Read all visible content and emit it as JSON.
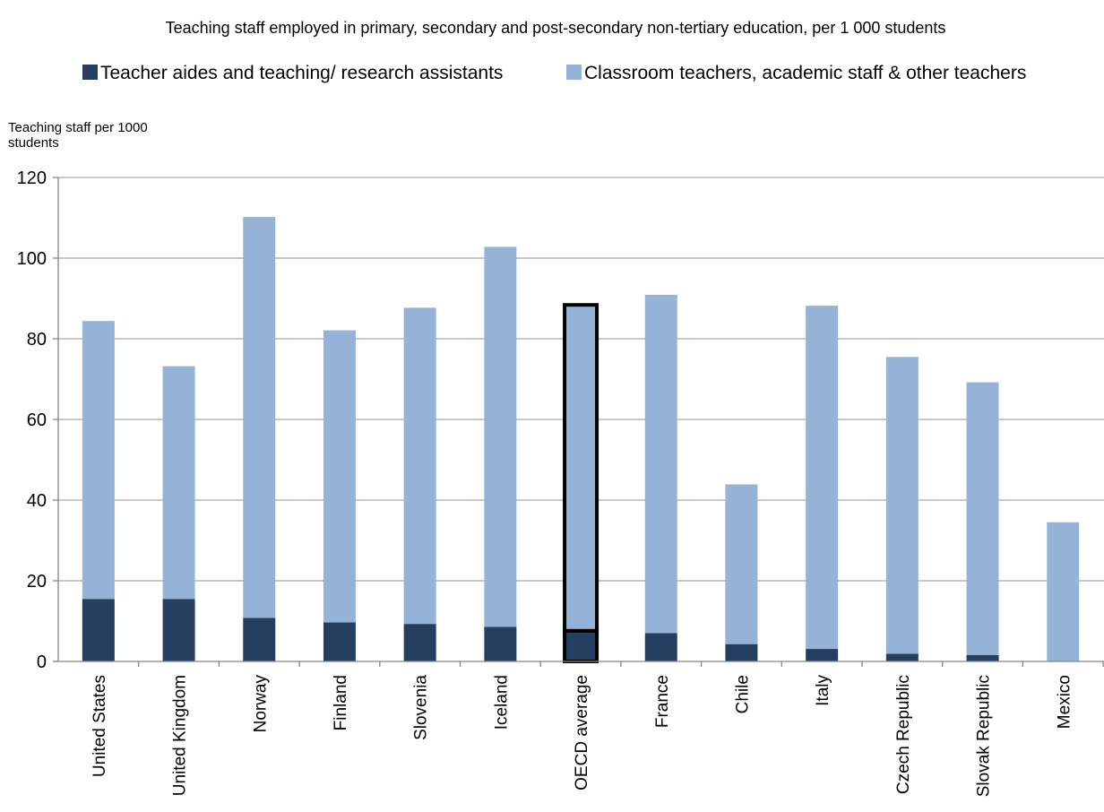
{
  "chart_data": {
    "type": "bar",
    "stacked": true,
    "title": "Teaching staff employed in primary, secondary and post-secondary non-tertiary education, per 1 000 students",
    "ylabel_lines": [
      "Teaching staff per 1000",
      "students"
    ],
    "xlabel": "",
    "ylim": [
      0,
      120
    ],
    "yticks": [
      0,
      20,
      40,
      60,
      80,
      100,
      120
    ],
    "grid": true,
    "legend_position": "top",
    "categories": [
      "United States",
      "United Kingdom",
      "Norway",
      "Finland",
      "Slovenia",
      "Iceland",
      "OECD average",
      "France",
      "Chile",
      "Italy",
      "Czech Republic",
      "Slovak Republic",
      "Mexico"
    ],
    "highlighted_category": "OECD average",
    "series": [
      {
        "name": "Teacher aides and teaching/ research assistants",
        "color": "#243f60",
        "values": [
          15.5,
          15.5,
          10.8,
          9.7,
          9.3,
          8.6,
          7.6,
          7.0,
          4.3,
          3.1,
          1.9,
          1.6,
          0
        ]
      },
      {
        "name": "Classroom teachers, academic staff & other teachers",
        "color": "#95b3d7",
        "values": [
          68.9,
          57.7,
          99.4,
          72.4,
          78.4,
          94.2,
          80.8,
          83.9,
          39.6,
          85.1,
          73.6,
          67.6,
          34.5
        ]
      }
    ]
  }
}
